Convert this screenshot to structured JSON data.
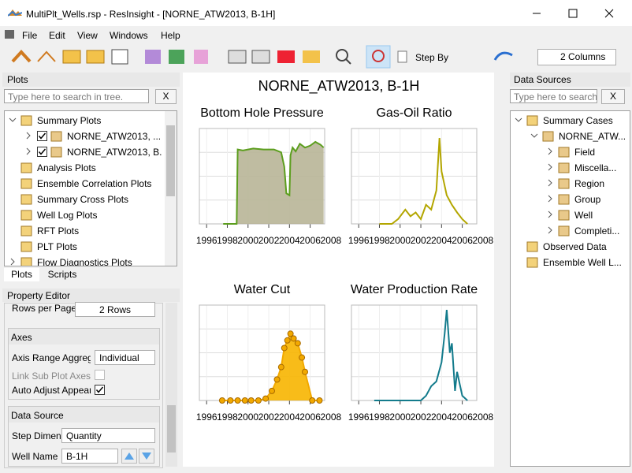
{
  "window": {
    "title": "MultiPlt_Wells.rsp - ResInsight - [NORNE_ATW2013, B-1H]"
  },
  "menu": [
    "File",
    "Edit",
    "View",
    "Windows",
    "Help"
  ],
  "toolbar": {
    "step_by": "Step By",
    "columns": "2 Columns"
  },
  "plots_panel": {
    "title": "Plots",
    "search": "Type here to search in tree.",
    "clear": "X",
    "tree": [
      {
        "label": "Summary Plots",
        "level": 0,
        "expanded": true
      },
      {
        "label": "NORNE_ATW2013, ...",
        "level": 1,
        "expanded": false,
        "checked": true
      },
      {
        "label": "NORNE_ATW2013, B...",
        "level": 1,
        "expanded": false,
        "checked": true
      },
      {
        "label": "Analysis Plots",
        "level": 0
      },
      {
        "label": "Ensemble Correlation Plots",
        "level": 0
      },
      {
        "label": "Summary Cross Plots",
        "level": 0
      },
      {
        "label": "Well Log Plots",
        "level": 0
      },
      {
        "label": "RFT Plots",
        "level": 0
      },
      {
        "label": "PLT Plots",
        "level": 0
      },
      {
        "label": "Flow Diagnostics Plots",
        "level": 0,
        "expanded": false
      }
    ],
    "tabs": [
      "Plots",
      "Scripts"
    ]
  },
  "property_editor": {
    "title": "Property Editor",
    "rows_label": "Rows per Page",
    "rows_value": "2 Rows",
    "axes": {
      "title": "Axes",
      "range_label": "Axis Range Aggrega",
      "range_value": "Individual",
      "link_label": "Link Sub Plot Axes",
      "link_checked": false,
      "auto_label": "Auto Adjust Appeara",
      "auto_checked": true
    },
    "data_source": {
      "title": "Data Source",
      "step_label": "Step Dimen",
      "step_value": "Quantity",
      "well_label": "Well Name",
      "well_value": "B-1H"
    }
  },
  "plot_window": {
    "title": "NORNE_ATW2013, B-1H",
    "plots": [
      {
        "title": "Bottom Hole Pressure",
        "type": "area",
        "color": "#5c9e1e",
        "fill": "#b8b597",
        "x": [
          1997.6,
          1998.9,
          1999.0,
          1999.5,
          2000.5,
          2001.5,
          2002.5,
          2003.2,
          2003.5,
          2003.7,
          2004.0,
          2004.1,
          2004.3,
          2004.6,
          2005.0,
          2005.5,
          2006.0,
          2006.5,
          2007.0,
          2007.3
        ],
        "values": [
          0,
          0,
          78,
          77,
          79,
          78,
          78,
          75,
          60,
          32,
          30,
          72,
          80,
          76,
          84,
          80,
          82,
          86,
          83,
          80
        ],
        "xlim": [
          1995.3,
          2007.4
        ],
        "xticks": [
          1996,
          1998,
          2000,
          2002,
          2004,
          2006,
          2008
        ],
        "ylim": [
          0,
          100
        ],
        "yticks": [
          25,
          50,
          75
        ]
      },
      {
        "title": "Gas-Oil Ratio",
        "type": "line",
        "color": "#b3a600",
        "x": [
          1998.0,
          1999.2,
          1999.8,
          2000.5,
          2001.0,
          2001.5,
          2002.0,
          2002.5,
          2003.0,
          2003.5,
          2003.8,
          2004.0,
          2004.5,
          2005.0,
          2005.5,
          2006.0,
          2006.5
        ],
        "values": [
          0,
          0,
          5,
          15,
          8,
          12,
          5,
          20,
          15,
          35,
          90,
          55,
          30,
          20,
          12,
          5,
          0
        ],
        "xlim": [
          1995.3,
          2007.4
        ],
        "xticks": [
          1996,
          1998,
          2000,
          2002,
          2004,
          2006,
          2008
        ],
        "ylim": [
          0,
          100
        ],
        "yticks": [
          25,
          50,
          75
        ]
      },
      {
        "title": "Water Cut",
        "type": "line_markers",
        "color": "#f2a900",
        "fill": "#f7b500",
        "marker": "#a86a00",
        "x": [
          1997.5,
          1998.3,
          1999.0,
          1999.7,
          2000.3,
          2001.0,
          2001.7,
          2002.3,
          2002.8,
          2003.2,
          2003.5,
          2003.8,
          2004.1,
          2004.4,
          2004.8,
          2005.2,
          2005.5,
          2006.2,
          2006.9
        ],
        "values": [
          0,
          0,
          0,
          0,
          0,
          0,
          2,
          10,
          22,
          35,
          55,
          63,
          70,
          65,
          60,
          45,
          30,
          0,
          0
        ],
        "xlim": [
          1995.3,
          2007.4
        ],
        "xticks": [
          1996,
          1998,
          2000,
          2002,
          2004,
          2006,
          2008
        ],
        "ylim": [
          0,
          100
        ],
        "yticks": [
          25,
          50,
          75
        ]
      },
      {
        "title": "Water Production Rate",
        "type": "line",
        "color": "#137b8c",
        "x": [
          1997.5,
          2002.0,
          2002.5,
          2003.0,
          2003.5,
          2004.0,
          2004.3,
          2004.5,
          2004.8,
          2005.0,
          2005.3,
          2005.5,
          2006.0,
          2006.5
        ],
        "values": [
          0,
          0,
          5,
          15,
          20,
          40,
          70,
          95,
          50,
          60,
          10,
          30,
          5,
          0
        ],
        "xlim": [
          1995.3,
          2007.4
        ],
        "xticks": [
          1996,
          1998,
          2000,
          2002,
          2004,
          2006,
          2008
        ],
        "ylim": [
          0,
          100
        ],
        "yticks": [
          25,
          50,
          75
        ]
      }
    ]
  },
  "data_sources": {
    "title": "Data Sources",
    "search": "Type here to search...",
    "clear": "X",
    "tree": [
      {
        "label": "Summary Cases",
        "level": 0,
        "expanded": true
      },
      {
        "label": "NORNE_ATW...",
        "level": 1,
        "expanded": true
      },
      {
        "label": "Field",
        "level": 2,
        "expanded": false
      },
      {
        "label": "Miscella...",
        "level": 2,
        "expanded": false
      },
      {
        "label": "Region",
        "level": 2,
        "expanded": false
      },
      {
        "label": "Group",
        "level": 2,
        "expanded": false
      },
      {
        "label": "Well",
        "level": 2,
        "expanded": false
      },
      {
        "label": "Completi...",
        "level": 2,
        "expanded": false
      },
      {
        "label": "Observed Data",
        "level": 0
      },
      {
        "label": "Ensemble Well L...",
        "level": 0
      }
    ]
  }
}
